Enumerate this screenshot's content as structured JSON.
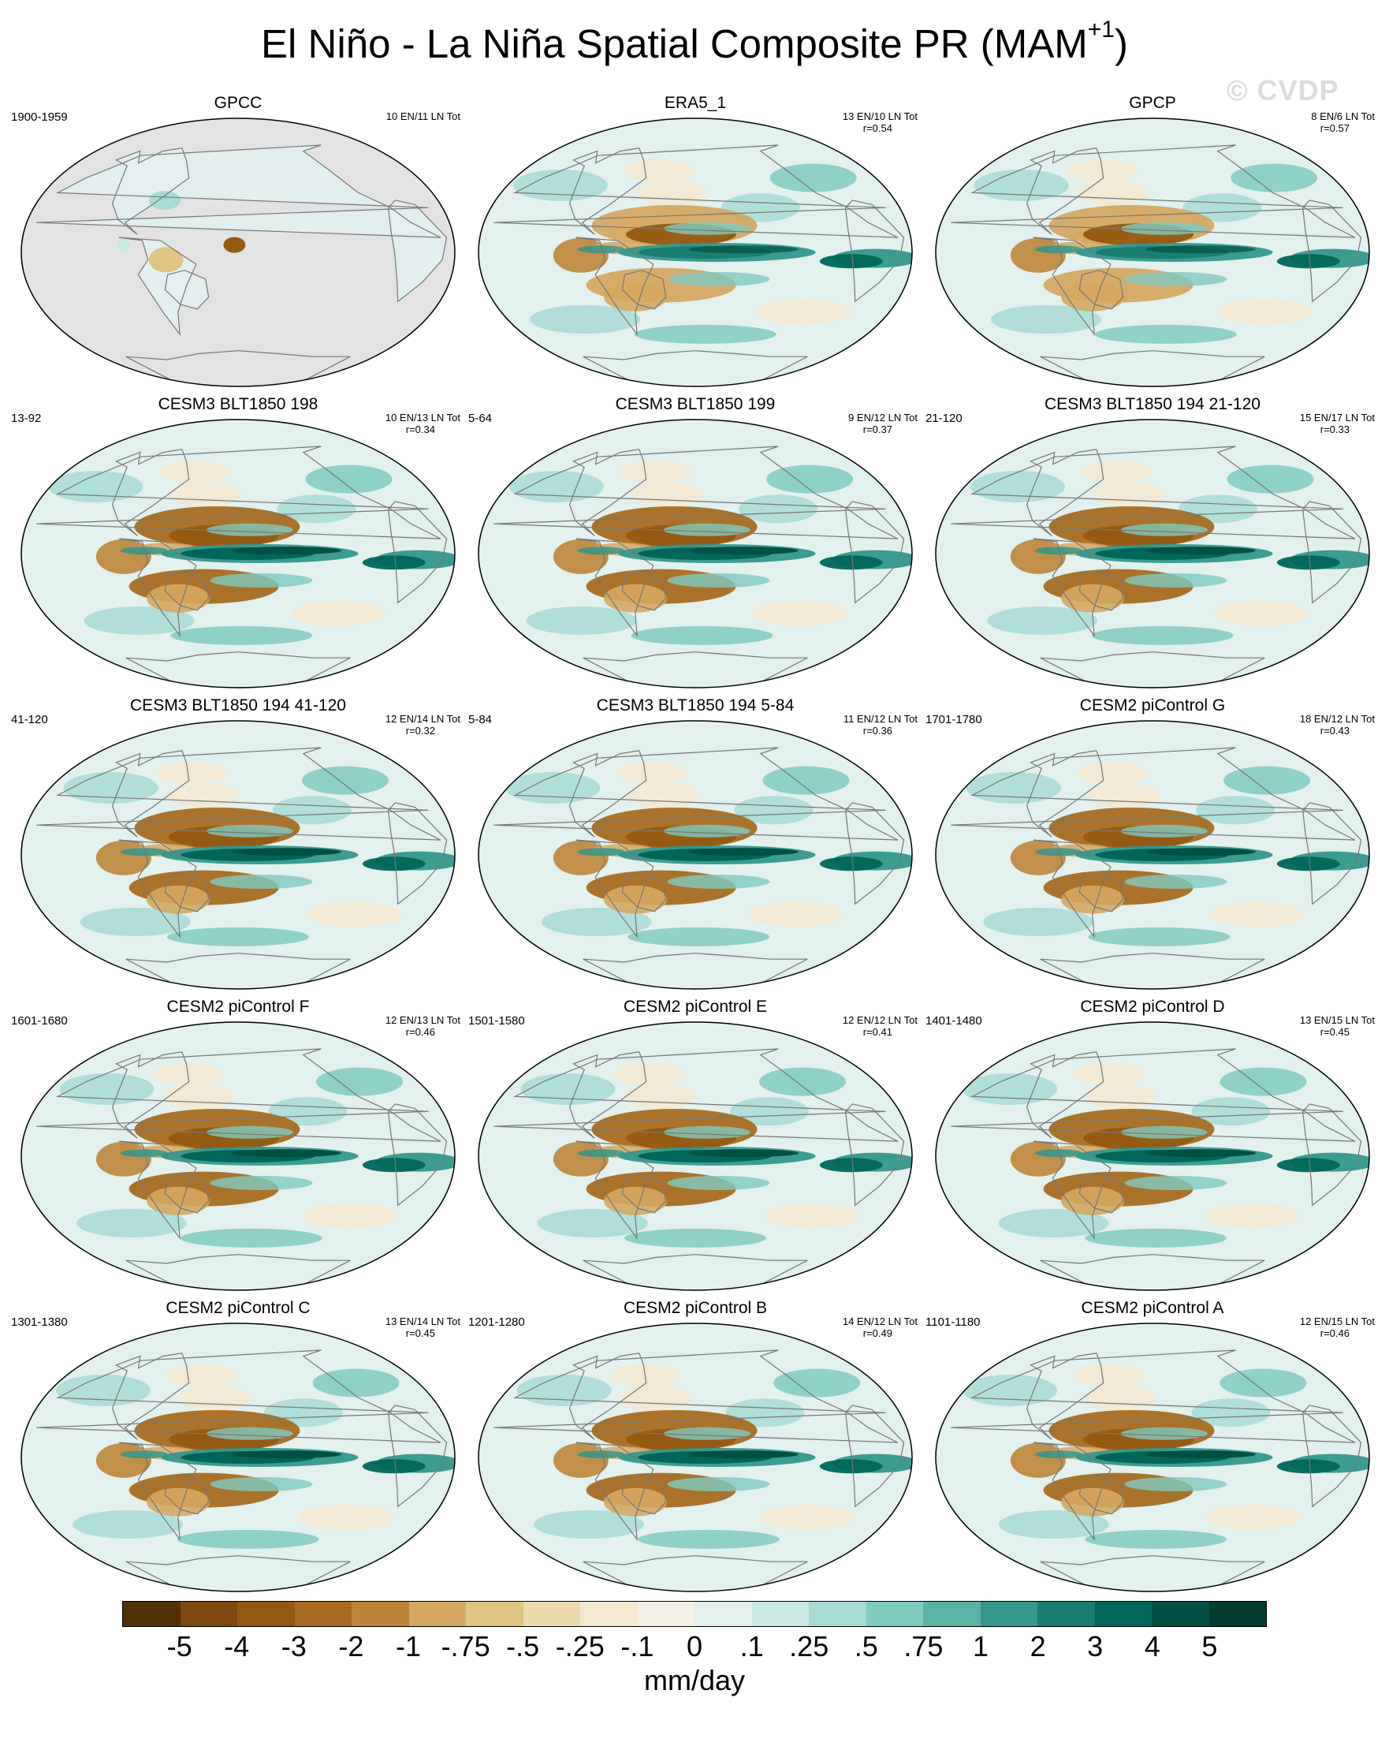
{
  "chart_data": {
    "type": "heatmap",
    "title": "El Niño - La Niña Spatial Composite PR (MAM",
    "title_superscript": "+1",
    "title_suffix": ")",
    "watermark": "© CVDP",
    "units": "mm/day",
    "projection": "Robinson (Pacific-centered)",
    "panels": [
      {
        "name": "GPCC",
        "period": "1900-1959",
        "counts": "10 EN/11 LN Tot",
        "r": "",
        "pattern": "land-only"
      },
      {
        "name": "ERA5_1",
        "period": "",
        "counts": "13 EN/10 LN Tot",
        "r": "r=0.54",
        "pattern": "obs"
      },
      {
        "name": "GPCP",
        "period": "",
        "counts": "8 EN/6 LN Tot",
        "r": "r=0.57",
        "pattern": "obs"
      },
      {
        "name": "CESM3 BLT1850 198",
        "period": "13-92",
        "counts": "10 EN/13 LN Tot",
        "r": "r=0.34",
        "pattern": "model"
      },
      {
        "name": "CESM3 BLT1850 199",
        "period": "5-64",
        "counts": "9 EN/12 LN Tot",
        "r": "r=0.37",
        "pattern": "model"
      },
      {
        "name": "CESM3 BLT1850 194 21-120",
        "period": "21-120",
        "counts": "15 EN/17 LN Tot",
        "r": "r=0.33",
        "pattern": "model"
      },
      {
        "name": "CESM3 BLT1850 194 41-120",
        "period": "41-120",
        "counts": "12 EN/14 LN Tot",
        "r": "r=0.32",
        "pattern": "model"
      },
      {
        "name": "CESM3 BLT1850 194 5-84",
        "period": "5-84",
        "counts": "11 EN/12 LN Tot",
        "r": "r=0.36",
        "pattern": "model"
      },
      {
        "name": "CESM2 piControl G",
        "period": "1701-1780",
        "counts": "18 EN/12 LN Tot",
        "r": "r=0.43",
        "pattern": "model"
      },
      {
        "name": "CESM2 piControl F",
        "period": "1601-1680",
        "counts": "12 EN/13 LN Tot",
        "r": "r=0.46",
        "pattern": "model"
      },
      {
        "name": "CESM2 piControl E",
        "period": "1501-1580",
        "counts": "12 EN/12 LN Tot",
        "r": "r=0.41",
        "pattern": "model"
      },
      {
        "name": "CESM2 piControl D",
        "period": "1401-1480",
        "counts": "13 EN/15 LN Tot",
        "r": "r=0.45",
        "pattern": "model"
      },
      {
        "name": "CESM2 piControl C",
        "period": "1301-1380",
        "counts": "13 EN/14 LN Tot",
        "r": "r=0.45",
        "pattern": "model"
      },
      {
        "name": "CESM2 piControl B",
        "period": "1201-1280",
        "counts": "14 EN/12 LN Tot",
        "r": "r=0.49",
        "pattern": "model"
      },
      {
        "name": "CESM2 piControl A",
        "period": "1101-1180",
        "counts": "12 EN/15 LN Tot",
        "r": "r=0.46",
        "pattern": "model"
      }
    ],
    "colorbar": {
      "labels": [
        "-5",
        "-4",
        "-3",
        "-2",
        "-1",
        "-.75",
        "-.5",
        "-.25",
        "-.1",
        "0",
        ".1",
        ".25",
        ".5",
        ".75",
        "1",
        "2",
        "3",
        "4",
        "5"
      ],
      "colors": [
        "#543005",
        "#7c4a10",
        "#955a12",
        "#a76b20",
        "#be8538",
        "#d4a862",
        "#e1c384",
        "#ecd9ad",
        "#f5e9cf",
        "#f5f0e6",
        "#e2f0ee",
        "#c8e8e3",
        "#a6dcd4",
        "#80cbc0",
        "#5bb2a6",
        "#33978b",
        "#1a7d71",
        "#00665a",
        "#015045",
        "#003c30"
      ]
    }
  }
}
